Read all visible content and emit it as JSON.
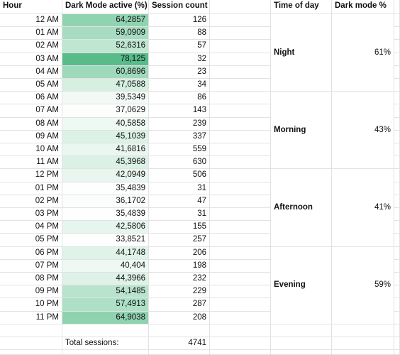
{
  "headers": {
    "hour": "Hour",
    "dark_mode_active": "Dark Mode active (%)",
    "session_count": "Session count",
    "time_of_day": "Time of day",
    "dark_mode_pct": "Dark mode %"
  },
  "rows": [
    {
      "hour": "12 AM",
      "dark": "64,2857",
      "sessions": "126",
      "fill": "#90d3b1"
    },
    {
      "hour": "01 AM",
      "dark": "59,0909",
      "sessions": "88",
      "fill": "#a6dcc0"
    },
    {
      "hour": "02 AM",
      "dark": "52,6316",
      "sessions": "57",
      "fill": "#bfe6d1"
    },
    {
      "hour": "03 AM",
      "dark": "78,125",
      "sessions": "32",
      "fill": "#57bb8a"
    },
    {
      "hour": "04 AM",
      "dark": "60,8696",
      "sessions": "23",
      "fill": "#9fd9bb"
    },
    {
      "hour": "05 AM",
      "dark": "47,0588",
      "sessions": "34",
      "fill": "#d5efe1"
    },
    {
      "hour": "06 AM",
      "dark": "39,5349",
      "sessions": "86",
      "fill": "#f3faf6"
    },
    {
      "hour": "07 AM",
      "dark": "37,0629",
      "sessions": "143",
      "fill": "#fcfefd"
    },
    {
      "hour": "08 AM",
      "dark": "40,5858",
      "sessions": "239",
      "fill": "#eff9f3"
    },
    {
      "hour": "09 AM",
      "dark": "45,1039",
      "sessions": "337",
      "fill": "#dcf2e6"
    },
    {
      "hour": "10 AM",
      "dark": "41,6816",
      "sessions": "559",
      "fill": "#eaf7f0"
    },
    {
      "hour": "11 AM",
      "dark": "45,3968",
      "sessions": "630",
      "fill": "#dbf1e5"
    },
    {
      "hour": "12 PM",
      "dark": "42,0949",
      "sessions": "506",
      "fill": "#e9f6ef"
    },
    {
      "hour": "01 PM",
      "dark": "35,4839",
      "sessions": "31",
      "fill": "#fdfefe"
    },
    {
      "hour": "02 PM",
      "dark": "36,1702",
      "sessions": "47",
      "fill": "#fbfdfc"
    },
    {
      "hour": "03 PM",
      "dark": "35,4839",
      "sessions": "31",
      "fill": "#fdfefe"
    },
    {
      "hour": "04 PM",
      "dark": "42,5806",
      "sessions": "155",
      "fill": "#e6f5ed"
    },
    {
      "hour": "05 PM",
      "dark": "33,8521",
      "sessions": "257",
      "fill": "#ffffff"
    },
    {
      "hour": "06 PM",
      "dark": "44,1748",
      "sessions": "206",
      "fill": "#dff3e8"
    },
    {
      "hour": "07 PM",
      "dark": "40,404",
      "sessions": "198",
      "fill": "#eff9f3"
    },
    {
      "hour": "08 PM",
      "dark": "44,3966",
      "sessions": "232",
      "fill": "#def2e7"
    },
    {
      "hour": "09 PM",
      "dark": "54,1485",
      "sessions": "229",
      "fill": "#b9e3cd"
    },
    {
      "hour": "10 PM",
      "dark": "57,4913",
      "sessions": "287",
      "fill": "#ade0c5"
    },
    {
      "hour": "11 PM",
      "dark": "64,9038",
      "sessions": "208",
      "fill": "#8fd2b0"
    }
  ],
  "total": {
    "label": "Total sessions:",
    "value": "4741"
  },
  "periods": [
    {
      "name": "Night",
      "pct": "61%"
    },
    {
      "name": "Morning",
      "pct": "43%"
    },
    {
      "name": "Afternoon",
      "pct": "41%"
    },
    {
      "name": "Evening",
      "pct": "59%"
    }
  ]
}
